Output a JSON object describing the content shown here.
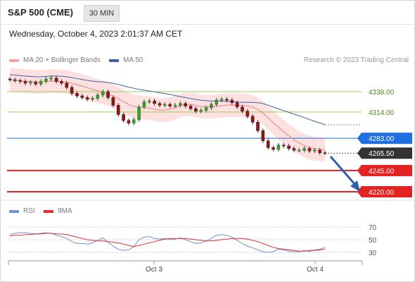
{
  "header": {
    "title": "S&P 500 (CME)",
    "timeframe": "30 MIN"
  },
  "datetime": "Wednesday, October 4, 2023 2:01:37 AM CET",
  "legend": {
    "bollinger": {
      "label": "MA 20 + Bollinger Bands",
      "color": "#f08080"
    },
    "ma50": {
      "label": "MA 50",
      "color": "#3f5fa8"
    },
    "copyright": "Research © 2023 Trading Central"
  },
  "levels": [
    {
      "value": "4338.00",
      "color": "#9acd5a",
      "kind": "resistance-light"
    },
    {
      "value": "4314.00",
      "color": "#9acd5a",
      "kind": "resistance-light"
    },
    {
      "value": "4283.00",
      "color": "#1f6fe0",
      "kind": "pivot"
    },
    {
      "value": "4265.50",
      "color": "#333333",
      "kind": "last-price"
    },
    {
      "value": "4245.00",
      "color": "#e32222",
      "kind": "support"
    },
    {
      "value": "4220.00",
      "color": "#e32222",
      "kind": "support"
    }
  ],
  "rsi_panel": {
    "legend_rsi": "RSI",
    "legend_ma": "9MA",
    "rsi_color": "#6f8fd6",
    "ma_color": "#e03030",
    "ticks": [
      "70",
      "50",
      "30"
    ]
  },
  "x_axis": {
    "labels": [
      "Oct 3",
      "Oct 4"
    ]
  },
  "chart_data": {
    "type": "candlestick",
    "y_levels": [
      4338.0,
      4314.0,
      4283.0,
      4265.5,
      4245.0,
      4220.0
    ],
    "closes": [
      4352,
      4351,
      4350,
      4348,
      4349,
      4347,
      4350,
      4353,
      4354,
      4350,
      4348,
      4343,
      4336,
      4333,
      4331,
      4329,
      4330,
      4334,
      4338,
      4331,
      4322,
      4311,
      4304,
      4301,
      4305,
      4320,
      4326,
      4327,
      4324,
      4322,
      4323,
      4321,
      4322,
      4324,
      4321,
      4318,
      4315,
      4316,
      4319,
      4323,
      4328,
      4329,
      4328,
      4325,
      4320,
      4315,
      4309,
      4302,
      4292,
      4280,
      4272,
      4270,
      4275,
      4274,
      4271,
      4269,
      4269,
      4271,
      4268,
      4269,
      4266,
      4265.5
    ],
    "rsi": [
      58,
      60,
      61,
      61,
      60,
      59,
      60,
      61,
      60,
      57,
      55,
      52,
      47,
      44,
      44,
      43,
      45,
      49,
      53,
      46,
      40,
      35,
      33,
      34,
      39,
      50,
      54,
      55,
      52,
      51,
      52,
      50,
      51,
      53,
      50,
      47,
      44,
      45,
      48,
      52,
      57,
      58,
      57,
      54,
      49,
      44,
      40,
      37,
      34,
      31,
      30,
      31,
      35,
      34,
      32,
      31,
      31,
      33,
      31,
      34,
      35,
      38
    ],
    "rsi_ma": [
      56,
      57,
      57,
      58,
      58,
      59,
      59,
      60,
      60,
      59,
      59,
      58,
      56,
      54,
      52,
      50,
      49,
      48,
      48,
      47,
      46,
      45,
      43,
      41,
      39,
      41,
      43,
      45,
      47,
      49,
      51,
      52,
      52,
      52,
      52,
      51,
      50,
      49,
      48,
      48,
      49,
      50,
      51,
      52,
      52,
      52,
      51,
      49,
      47,
      44,
      41,
      38,
      36,
      35,
      34,
      33,
      32,
      32,
      33,
      33,
      34,
      35
    ]
  }
}
